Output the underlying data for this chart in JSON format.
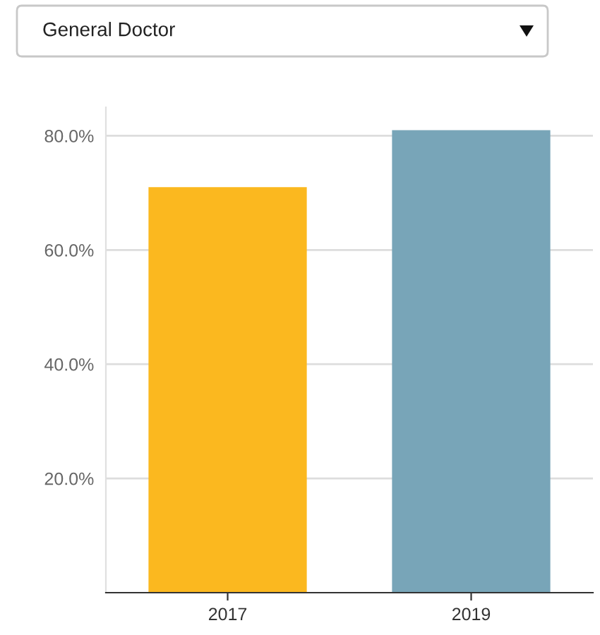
{
  "chart_data": {
    "type": "bar",
    "title": "General Doctor",
    "categories": [
      "2017",
      "2019"
    ],
    "values": [
      71,
      81
    ],
    "colors": [
      "#fbb81f",
      "#78a5b8"
    ],
    "ylim": [
      0,
      85
    ],
    "yticks": [
      {
        "value": 20,
        "label": "20.0%"
      },
      {
        "value": 40,
        "label": "40.0%"
      },
      {
        "value": 60,
        "label": "60.0%"
      },
      {
        "value": 80,
        "label": "80.0%"
      }
    ],
    "grid": "y"
  }
}
